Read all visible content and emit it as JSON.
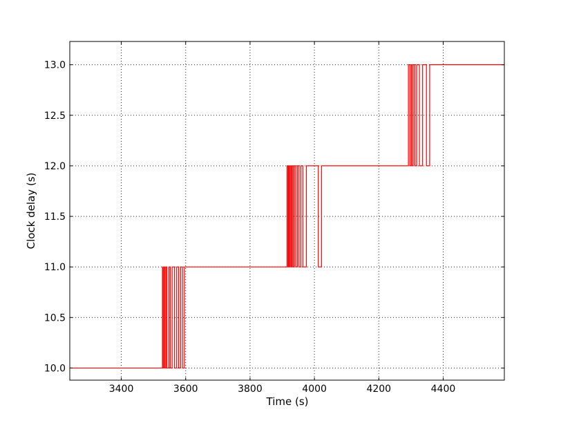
{
  "chart_data": {
    "type": "line",
    "title": "",
    "xlabel": "Time (s)",
    "ylabel": "Clock delay (s)",
    "xlim": [
      3240,
      4590
    ],
    "ylim": [
      9.88,
      13.23
    ],
    "xticks": [
      3400,
      3600,
      3800,
      4000,
      4200,
      4400
    ],
    "yticks": [
      10.0,
      10.5,
      11.0,
      11.5,
      12.0,
      12.5,
      13.0
    ],
    "xtick_labels": [
      "3400",
      "3600",
      "3800",
      "4000",
      "4200",
      "4400"
    ],
    "ytick_labels": [
      "10.0",
      "10.5",
      "11.0",
      "11.5",
      "12.0",
      "12.5",
      "13.0"
    ],
    "grid": true,
    "series": [
      {
        "color": "#ff0000",
        "x": [
          3240,
          3528,
          3528,
          3530,
          3530,
          3533,
          3533,
          3536,
          3536,
          3539,
          3539,
          3542,
          3542,
          3548,
          3548,
          3552,
          3552,
          3558,
          3558,
          3565,
          3565,
          3572,
          3572,
          3578,
          3578,
          3584,
          3584,
          3590,
          3590,
          3596,
          3596,
          3915,
          3915,
          3918,
          3918,
          3920,
          3920,
          3922,
          3922,
          3925,
          3925,
          3928,
          3928,
          3931,
          3931,
          3934,
          3934,
          3938,
          3938,
          3942,
          3942,
          3947,
          3947,
          3952,
          3952,
          3958,
          3958,
          3964,
          3964,
          3975,
          3975,
          4012,
          4012,
          4022,
          4022,
          4292,
          4292,
          4296,
          4296,
          4300,
          4300,
          4303,
          4303,
          4307,
          4307,
          4312,
          4312,
          4318,
          4318,
          4326,
          4326,
          4336,
          4336,
          4348,
          4348,
          4358,
          4358,
          4590
        ],
        "y": [
          10.0,
          10.0,
          11.0,
          11.0,
          10.0,
          10.0,
          11.0,
          11.0,
          10.0,
          10.0,
          11.0,
          11.0,
          10.0,
          10.0,
          11.0,
          11.0,
          10.0,
          10.0,
          11.0,
          11.0,
          10.0,
          10.0,
          11.0,
          11.0,
          10.0,
          10.0,
          11.0,
          11.0,
          10.0,
          10.0,
          11.0,
          11.0,
          12.0,
          12.0,
          11.0,
          11.0,
          12.0,
          12.0,
          11.0,
          11.0,
          12.0,
          12.0,
          11.0,
          11.0,
          12.0,
          12.0,
          11.0,
          11.0,
          12.0,
          12.0,
          11.0,
          11.0,
          12.0,
          12.0,
          11.0,
          11.0,
          12.0,
          12.0,
          11.0,
          11.0,
          12.0,
          12.0,
          11.0,
          11.0,
          12.0,
          12.0,
          13.0,
          13.0,
          12.0,
          12.0,
          13.0,
          13.0,
          12.0,
          12.0,
          13.0,
          13.0,
          12.0,
          12.0,
          13.0,
          13.0,
          12.0,
          12.0,
          13.0,
          13.0,
          12.0,
          12.0,
          13.0,
          13.0
        ]
      }
    ]
  }
}
